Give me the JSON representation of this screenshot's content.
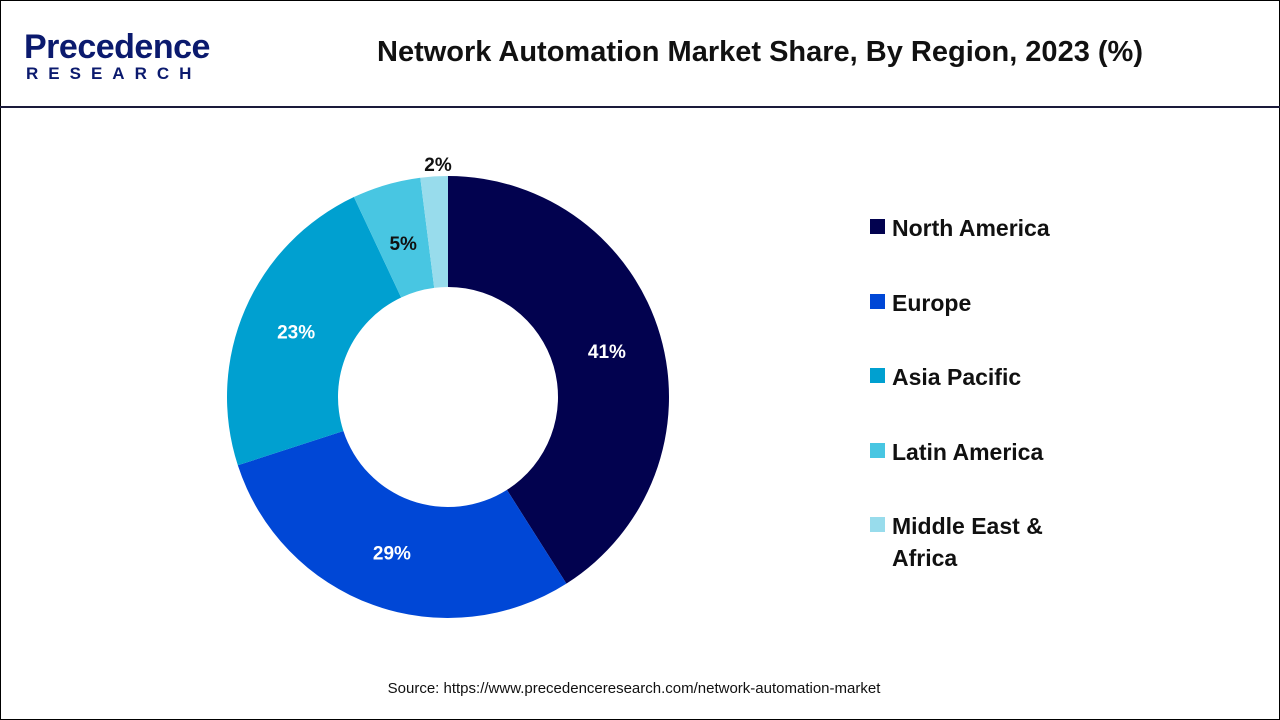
{
  "header": {
    "logo_text": "Precedence",
    "logo_sub": "RESEARCH",
    "title": "Network Automation Market Share, By Region, 2023 (%)"
  },
  "chart_data": {
    "type": "pie",
    "variant": "donut",
    "title": "Network Automation Market Share, By Region, 2023 (%)",
    "categories": [
      "North America",
      "Europe",
      "Asia Pacific",
      "Latin America",
      "Middle East & Africa"
    ],
    "values": [
      41,
      29,
      23,
      5,
      2
    ],
    "data_labels": [
      "41%",
      "29%",
      "23%",
      "5%",
      "2%"
    ],
    "colors": [
      "#02024f",
      "#0047d6",
      "#00a0d0",
      "#48c6e2",
      "#98dcec"
    ],
    "label_colors": [
      "#ffffff",
      "#ffffff",
      "#ffffff",
      "#111111",
      "#111111"
    ],
    "legend_position": "right"
  },
  "legend": {
    "items": [
      {
        "label": "North America"
      },
      {
        "label": "Europe"
      },
      {
        "label": "Asia Pacific"
      },
      {
        "label": "Latin America"
      },
      {
        "label": "Middle East &\nAfrica"
      }
    ]
  },
  "source": "Source: https://www.precedenceresearch.com/network-automation-market"
}
